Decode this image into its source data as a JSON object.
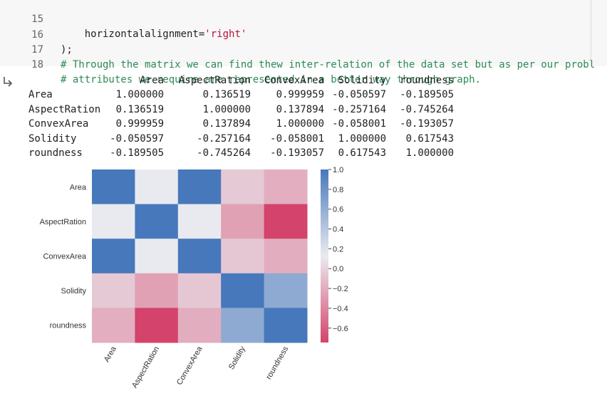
{
  "code": {
    "lines": [
      {
        "no": "15",
        "indent": "    ",
        "plain": "horizontalalignment=",
        "string": "'right'"
      },
      {
        "no": "16",
        "text": ");"
      },
      {
        "no": "17",
        "comment": "# Through the matrix we can find thew inter-relation of the data set but as per our probl"
      },
      {
        "no": "18",
        "comment": "# attributes we require are represented in a better way through graph."
      }
    ]
  },
  "output": {
    "table": {
      "columns": [
        "Area",
        "AspectRation",
        "ConvexArea",
        "Solidity",
        "roundness"
      ],
      "rows": [
        {
          "name": "Area",
          "values": [
            "1.000000",
            "0.136519",
            "0.999959",
            "-0.050597",
            "-0.189505"
          ]
        },
        {
          "name": "AspectRation",
          "values": [
            "0.136519",
            "1.000000",
            "0.137894",
            "-0.257164",
            "-0.745264"
          ]
        },
        {
          "name": "ConvexArea",
          "values": [
            "0.999959",
            "0.137894",
            "1.000000",
            "-0.058001",
            "-0.193057"
          ]
        },
        {
          "name": "Solidity",
          "values": [
            "-0.050597",
            "-0.257164",
            "-0.058001",
            "1.000000",
            "0.617543"
          ]
        },
        {
          "name": "roundness",
          "values": [
            "-0.189505",
            "-0.745264",
            "-0.193057",
            "0.617543",
            "1.000000"
          ]
        }
      ]
    }
  },
  "chart_data": {
    "type": "heatmap",
    "x_categories": [
      "Area",
      "AspectRation",
      "ConvexArea",
      "Solidity",
      "roundness"
    ],
    "y_categories": [
      "Area",
      "AspectRation",
      "ConvexArea",
      "Solidity",
      "roundness"
    ],
    "values": [
      [
        1.0,
        0.136519,
        0.999959,
        -0.050597,
        -0.189505
      ],
      [
        0.136519,
        1.0,
        0.137894,
        -0.257164,
        -0.745264
      ],
      [
        0.999959,
        0.137894,
        1.0,
        -0.058001,
        -0.193057
      ],
      [
        -0.050597,
        -0.257164,
        -0.058001,
        1.0,
        0.617543
      ],
      [
        -0.189505,
        -0.745264,
        -0.193057,
        0.617543,
        1.0
      ]
    ],
    "vmin": -0.745264,
    "vmax": 1.0,
    "colorbar_ticks": [
      1.0,
      0.8,
      0.6,
      0.4,
      0.2,
      0.0,
      -0.2,
      -0.4,
      -0.6
    ],
    "colorbar_tick_labels": [
      "1.0",
      "0.8",
      "0.6",
      "0.4",
      "0.2",
      "0.0",
      "−0.2",
      "−0.4",
      "−0.6"
    ],
    "colors": {
      "low": "#d3436b",
      "mid": "#eaebf0",
      "high": "#4778bb"
    }
  }
}
